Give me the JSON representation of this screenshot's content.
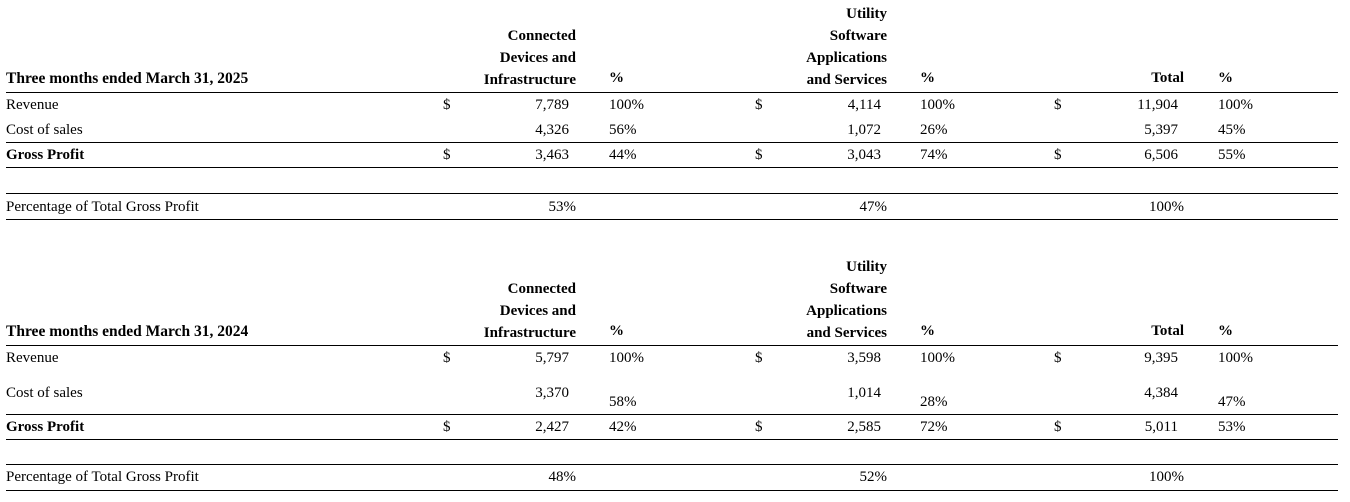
{
  "columns": {
    "segment1": [
      "Connected",
      "Devices and",
      "Infrastructure"
    ],
    "segment2": [
      "Utility",
      "Software",
      "Applications",
      "and Services"
    ],
    "total": "Total",
    "pct": "%"
  },
  "tables": [
    {
      "title": "Three months ended March 31, 2025",
      "rows": [
        {
          "label": "Revenue",
          "currency": "$",
          "seg1": "7,789",
          "seg1_pct": "100%",
          "seg2": "4,114",
          "seg2_pct": "100%",
          "total": "11,904",
          "total_pct": "100%"
        },
        {
          "label": "Cost of sales",
          "currency": "",
          "seg1": "4,326",
          "seg1_pct": "56%",
          "seg2": "1,072",
          "seg2_pct": "26%",
          "total": "5,397",
          "total_pct": "45%"
        },
        {
          "label": "Gross Profit",
          "currency": "$",
          "seg1": "3,463",
          "seg1_pct": "44%",
          "seg2": "3,043",
          "seg2_pct": "74%",
          "total": "6,506",
          "total_pct": "55%"
        }
      ],
      "share": {
        "label": "Percentage of Total Gross Profit",
        "seg1": "53%",
        "seg2": "47%",
        "total": "100%"
      }
    },
    {
      "title": "Three months ended March 31, 2024",
      "rows": [
        {
          "label": "Revenue",
          "currency": "$",
          "seg1": "5,797",
          "seg1_pct": "100%",
          "seg2": "3,598",
          "seg2_pct": "100%",
          "total": "9,395",
          "total_pct": "100%"
        },
        {
          "label": "Cost of sales",
          "currency": "",
          "seg1": "3,370",
          "seg1_pct": "58%",
          "seg2": "1,014",
          "seg2_pct": "28%",
          "total": "4,384",
          "total_pct": "47%"
        },
        {
          "label": "Gross Profit",
          "currency": "$",
          "seg1": "2,427",
          "seg1_pct": "42%",
          "seg2": "2,585",
          "seg2_pct": "72%",
          "total": "5,011",
          "total_pct": "53%"
        }
      ],
      "share": {
        "label": "Percentage of Total Gross Profit",
        "seg1": "48%",
        "seg2": "52%",
        "total": "100%"
      }
    }
  ]
}
